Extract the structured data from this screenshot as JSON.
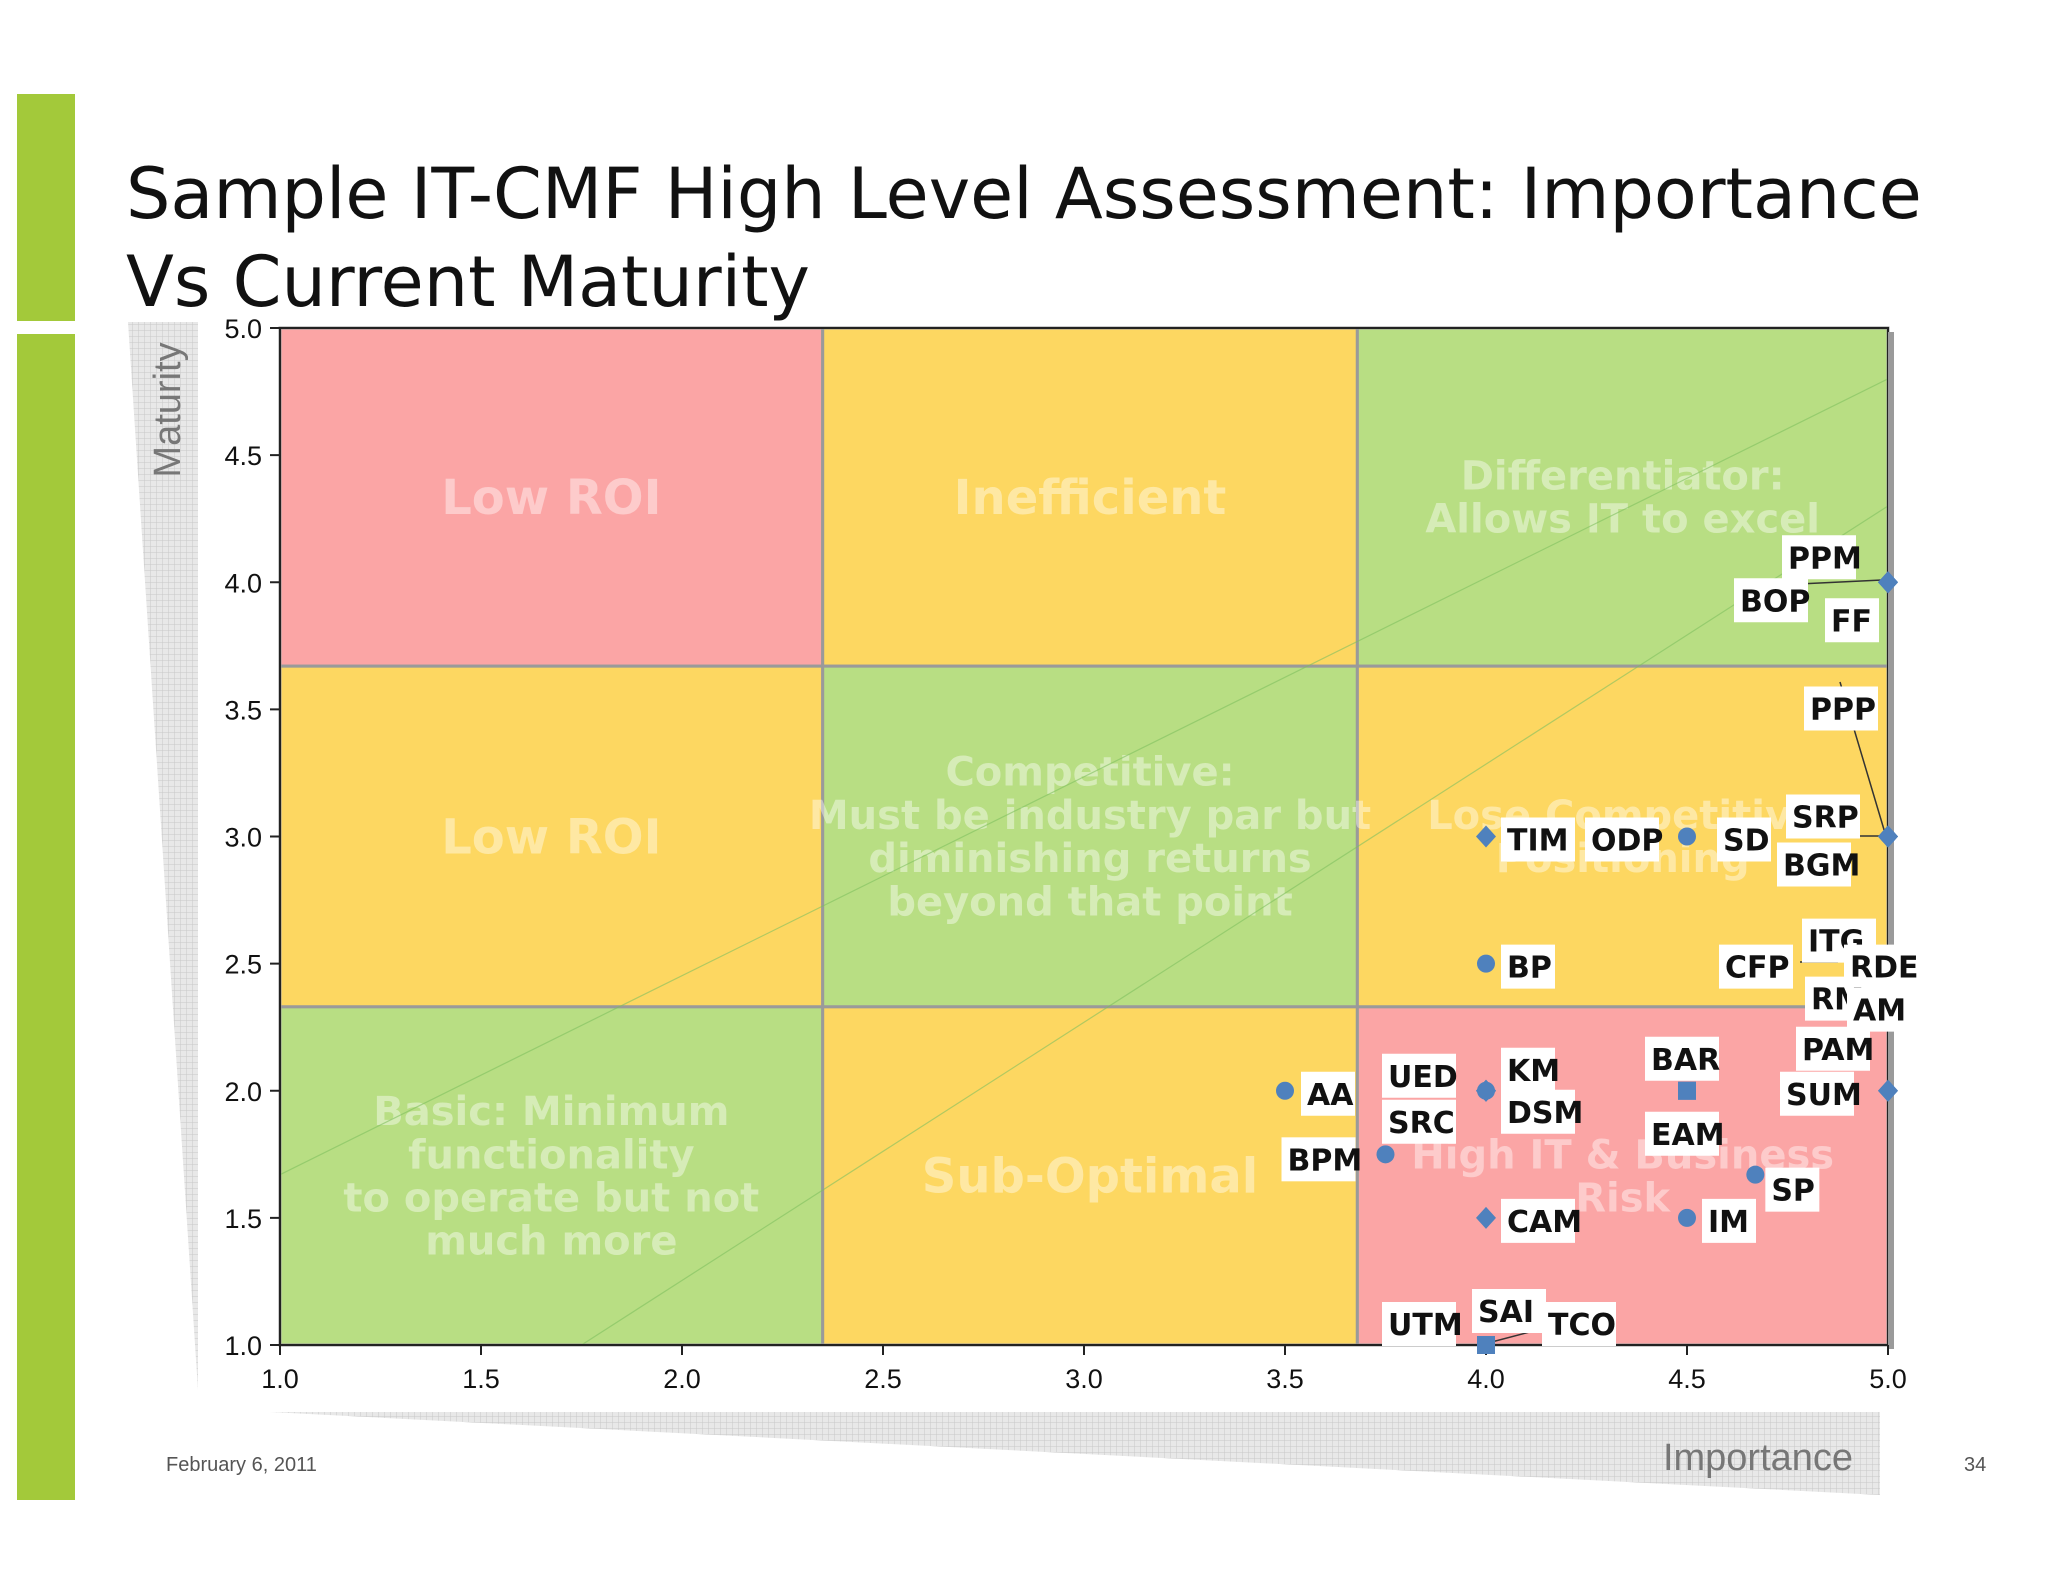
{
  "slide": {
    "title_line1": "Sample IT-CMF High Level Assessment: Importance",
    "title_line2": "Vs Current Maturity",
    "date": "February 6, 2011",
    "page_number": "34"
  },
  "colors": {
    "accent_bar": "#a3c93a",
    "zone_red": "#fba5a5",
    "zone_yellow": "#fdd761",
    "zone_green": "#b8de83",
    "marker": "#4f81bd"
  },
  "chart_data": {
    "type": "scatter",
    "xlabel": "Importance",
    "ylabel": "Maturity",
    "xlim": [
      1.0,
      5.0
    ],
    "ylim": [
      1.0,
      5.0
    ],
    "xticks": [
      "1.0",
      "1.5",
      "2.0",
      "2.5",
      "3.0",
      "3.5",
      "4.0",
      "4.5",
      "5.0"
    ],
    "yticks": [
      "1.0",
      "1.5",
      "2.0",
      "2.5",
      "3.0",
      "3.5",
      "4.0",
      "4.5",
      "5.0"
    ],
    "zones": [
      {
        "x": [
          1.0,
          2.35
        ],
        "y": [
          3.67,
          5.0
        ],
        "color": "red",
        "label": "Low ROI"
      },
      {
        "x": [
          2.35,
          3.68
        ],
        "y": [
          3.67,
          5.0
        ],
        "color": "yellow",
        "label": "Inefficient"
      },
      {
        "x": [
          3.68,
          5.0
        ],
        "y": [
          3.67,
          5.0
        ],
        "color": "green",
        "label": "Differentiator:\nAllows IT to excel"
      },
      {
        "x": [
          1.0,
          2.35
        ],
        "y": [
          2.33,
          3.67
        ],
        "color": "yellow",
        "label": "Low ROI"
      },
      {
        "x": [
          2.35,
          3.68
        ],
        "y": [
          2.33,
          3.67
        ],
        "color": "green",
        "label": "Competitive:\nMust be industry par but\ndiminishing returns\nbeyond that point"
      },
      {
        "x": [
          3.68,
          5.0
        ],
        "y": [
          2.33,
          3.67
        ],
        "color": "yellow",
        "label": "Lose Competitive\nPositioning"
      },
      {
        "x": [
          1.0,
          2.35
        ],
        "y": [
          1.0,
          2.33
        ],
        "color": "green",
        "label": "Basic: Minimum\nfunctionality\nto operate but not\nmuch more"
      },
      {
        "x": [
          2.35,
          3.68
        ],
        "y": [
          1.0,
          2.33
        ],
        "color": "yellow",
        "label": "Sub-Optimal"
      },
      {
        "x": [
          3.68,
          5.0
        ],
        "y": [
          1.0,
          2.33
        ],
        "color": "red",
        "label": "High IT & Business\nRisk"
      }
    ],
    "points": [
      {
        "label": "PPM",
        "x": 5.0,
        "y": 4.0,
        "marker": "diamond"
      },
      {
        "label": "BOP",
        "x": 5.0,
        "y": 4.0,
        "marker": "diamond"
      },
      {
        "label": "FF",
        "x": 5.0,
        "y": 4.0,
        "marker": "diamond"
      },
      {
        "label": "PPP",
        "x": 5.0,
        "y": 3.0,
        "marker": "diamond"
      },
      {
        "label": "SRP",
        "x": 5.0,
        "y": 3.0,
        "marker": "diamond"
      },
      {
        "label": "SD",
        "x": 5.0,
        "y": 3.0,
        "marker": "diamond"
      },
      {
        "label": "BGM",
        "x": 5.0,
        "y": 3.0,
        "marker": "diamond"
      },
      {
        "label": "TIM",
        "x": 4.0,
        "y": 3.0,
        "marker": "diamond"
      },
      {
        "label": "ODP",
        "x": 4.5,
        "y": 3.0,
        "marker": "circle"
      },
      {
        "label": "BP",
        "x": 4.0,
        "y": 2.5,
        "marker": "circle"
      },
      {
        "label": "ITG",
        "x": 5.0,
        "y": 2.5,
        "marker": "diamond"
      },
      {
        "label": "CFP",
        "x": 5.0,
        "y": 2.5,
        "marker": "diamond"
      },
      {
        "label": "RDE",
        "x": 5.0,
        "y": 2.5,
        "marker": "diamond"
      },
      {
        "label": "RM",
        "x": 5.0,
        "y": 2.5,
        "marker": "diamond"
      },
      {
        "label": "AM",
        "x": 5.0,
        "y": 2.5,
        "marker": "diamond"
      },
      {
        "label": "PAM",
        "x": 5.0,
        "y": 2.0,
        "marker": "diamond"
      },
      {
        "label": "SUM",
        "x": 5.0,
        "y": 2.0,
        "marker": "diamond"
      },
      {
        "label": "AA",
        "x": 3.5,
        "y": 2.0,
        "marker": "circle"
      },
      {
        "label": "UED",
        "x": 4.0,
        "y": 2.0,
        "marker": "diamond"
      },
      {
        "label": "KM",
        "x": 4.0,
        "y": 2.0,
        "marker": "circle"
      },
      {
        "label": "SRC",
        "x": 4.0,
        "y": 2.0,
        "marker": "diamond"
      },
      {
        "label": "DSM",
        "x": 4.0,
        "y": 2.0,
        "marker": "diamond"
      },
      {
        "label": "BAR",
        "x": 4.5,
        "y": 2.0,
        "marker": "square"
      },
      {
        "label": "EAM",
        "x": 4.5,
        "y": 2.0,
        "marker": "square"
      },
      {
        "label": "BPM",
        "x": 3.75,
        "y": 1.75,
        "marker": "circle"
      },
      {
        "label": "SP",
        "x": 4.67,
        "y": 1.67,
        "marker": "circle"
      },
      {
        "label": "CAM",
        "x": 4.0,
        "y": 1.5,
        "marker": "diamond"
      },
      {
        "label": "IM",
        "x": 4.5,
        "y": 1.5,
        "marker": "circle"
      },
      {
        "label": "UTM",
        "x": 4.0,
        "y": 1.0,
        "marker": "square"
      },
      {
        "label": "SAI",
        "x": 4.0,
        "y": 1.0,
        "marker": "square"
      },
      {
        "label": "TCO",
        "x": 4.0,
        "y": 1.0,
        "marker": "square"
      }
    ]
  }
}
